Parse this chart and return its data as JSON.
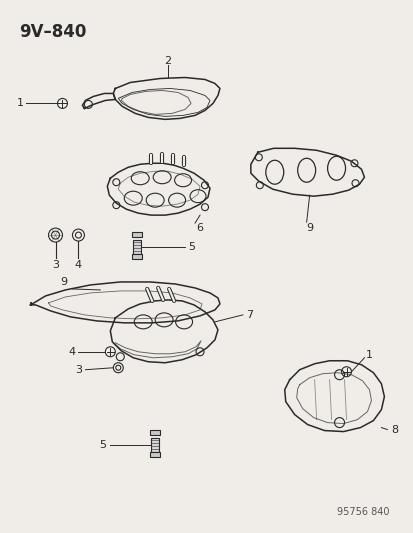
{
  "title": "9V–840",
  "background_color": "#f0ede8",
  "line_color": "#2a2a2a",
  "label_color": "#111111",
  "watermark": "95756 840",
  "fig_w": 4.14,
  "fig_h": 5.33,
  "dpi": 100
}
